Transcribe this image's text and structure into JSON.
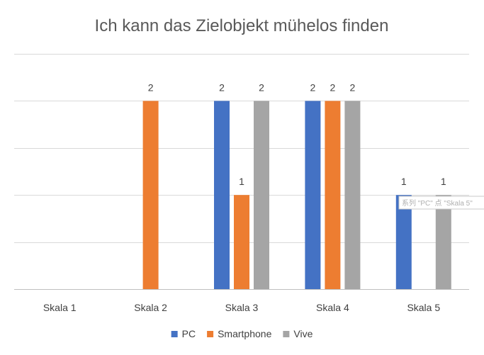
{
  "chart_data": {
    "type": "bar",
    "title": "Ich kann das Zielobjekt mühelos finden",
    "categories": [
      "Skala 1",
      "Skala 2",
      "Skala 3",
      "Skala 4",
      "Skala 5"
    ],
    "series": [
      {
        "name": "PC",
        "values": [
          0,
          0,
          2,
          2,
          1
        ],
        "color": "#4472C4"
      },
      {
        "name": "Smartphone",
        "values": [
          0,
          2,
          1,
          2,
          0
        ],
        "color": "#ED7D31"
      },
      {
        "name": "Vive",
        "values": [
          0,
          0,
          2,
          2,
          1
        ],
        "color": "#A5A5A5"
      }
    ],
    "ylim": [
      0,
      2.5
    ],
    "y_gridline_step": 0.5,
    "y_tick_labels_shown": false,
    "grid": true,
    "legend_position": "bottom",
    "tooltip_text": "系列 \"PC\" 点 \"Skala 5\""
  }
}
